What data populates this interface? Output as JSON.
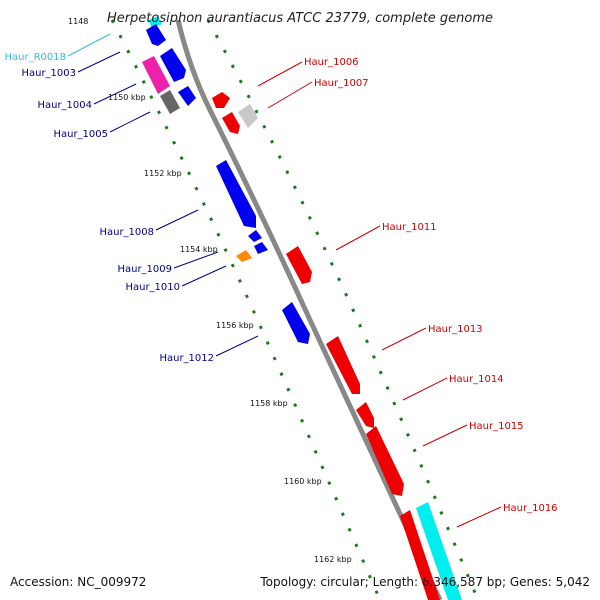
{
  "title": "Herpetosiphon aurantiacus ATCC 23779, complete genome",
  "footer": {
    "accession": "Accession: NC_009972",
    "summary": "Topology: circular; Length: 6,346,587 bp; Genes: 5,042"
  },
  "colors": {
    "backbone": "#888888",
    "tick_green": "#1a7a1a",
    "label_blue": "#00008b",
    "label_red": "#cc0000",
    "label_cyan": "#33bbdd",
    "gene_blue": "#0000ee",
    "gene_red": "#ee0000",
    "gene_pink": "#ee22aa",
    "gene_gray": "#666666",
    "gene_lightgray": "#c8c8c8",
    "gene_orange": "#ff8800",
    "gene_cyan": "#00eeee"
  },
  "tick_labels": [
    "1148",
    "1150 kbp",
    "1152 kbp",
    "1154 kbp",
    "1156 kbp",
    "1158 kbp",
    "1160 kbp",
    "1162 kbp"
  ],
  "gene_labels": [
    {
      "text": "Haur_R0018",
      "color": "cyan"
    },
    {
      "text": "Haur_1003",
      "color": "blue"
    },
    {
      "text": "Haur_1004",
      "color": "blue"
    },
    {
      "text": "Haur_1005",
      "color": "blue"
    },
    {
      "text": "Haur_1006",
      "color": "red"
    },
    {
      "text": "Haur_1007",
      "color": "red"
    },
    {
      "text": "Haur_1008",
      "color": "blue"
    },
    {
      "text": "Haur_1009",
      "color": "blue"
    },
    {
      "text": "Haur_1010",
      "color": "blue"
    },
    {
      "text": "Haur_1011",
      "color": "red"
    },
    {
      "text": "Haur_1012",
      "color": "blue"
    },
    {
      "text": "Haur_1013",
      "color": "red"
    },
    {
      "text": "Haur_1014",
      "color": "red"
    },
    {
      "text": "Haur_1015",
      "color": "red"
    },
    {
      "text": "Haur_1016",
      "color": "red"
    }
  ]
}
